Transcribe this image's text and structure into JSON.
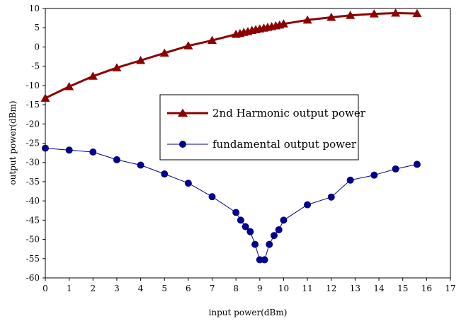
{
  "chart_data": {
    "type": "line",
    "title": "",
    "xlabel": "input power(dBm)",
    "ylabel": "output power(dBm)",
    "xlim": [
      0,
      17
    ],
    "ylim": [
      -60,
      10
    ],
    "xticks": [
      "0",
      "1",
      "2",
      "3",
      "4",
      "5",
      "6",
      "7",
      "8",
      "9",
      "10",
      "11",
      "12",
      "13",
      "14",
      "15",
      "16",
      "17"
    ],
    "yticks": [
      "10",
      "5",
      "0",
      "-5",
      "-10",
      "-15",
      "-20",
      "-25",
      "-30",
      "-35",
      "-40",
      "-45",
      "-50",
      "-55",
      "-60"
    ],
    "grid": false,
    "legend_position": "center",
    "series": [
      {
        "name": "2nd Harmonic output power",
        "color": "#8b0000",
        "marker": "triangle",
        "points": [
          [
            0,
            -13.3
          ],
          [
            1,
            -10.3
          ],
          [
            2,
            -7.6
          ],
          [
            3,
            -5.4
          ],
          [
            4,
            -3.5
          ],
          [
            5,
            -1.6
          ],
          [
            6,
            0.3
          ],
          [
            7,
            1.7
          ],
          [
            8,
            3.3
          ],
          [
            8.17,
            3.5
          ],
          [
            8.33,
            3.8
          ],
          [
            8.5,
            4.0
          ],
          [
            8.67,
            4.3
          ],
          [
            8.83,
            4.5
          ],
          [
            9.0,
            4.7
          ],
          [
            9.17,
            4.9
          ],
          [
            9.33,
            5.1
          ],
          [
            9.5,
            5.3
          ],
          [
            9.67,
            5.5
          ],
          [
            9.83,
            5.7
          ],
          [
            10,
            6.0
          ],
          [
            11,
            7.0
          ],
          [
            12,
            7.7
          ],
          [
            12.8,
            8.2
          ],
          [
            13.8,
            8.6
          ],
          [
            14.7,
            8.8
          ],
          [
            15.6,
            8.7
          ]
        ]
      },
      {
        "name": "fundamental output power",
        "color": "#00008b",
        "marker": "circle",
        "points": [
          [
            0,
            -26.3
          ],
          [
            1,
            -26.8
          ],
          [
            2,
            -27.3
          ],
          [
            3,
            -29.3
          ],
          [
            4,
            -30.7
          ],
          [
            5,
            -33.0
          ],
          [
            6,
            -35.4
          ],
          [
            7,
            -38.9
          ],
          [
            8,
            -43.0
          ],
          [
            8.2,
            -45.0
          ],
          [
            8.4,
            -46.7
          ],
          [
            8.6,
            -48.0
          ],
          [
            8.8,
            -51.3
          ],
          [
            9.0,
            -55.3
          ],
          [
            9.2,
            -55.3
          ],
          [
            9.4,
            -51.3
          ],
          [
            9.6,
            -49.0
          ],
          [
            9.8,
            -47.5
          ],
          [
            10,
            -45.0
          ],
          [
            11,
            -41.0
          ],
          [
            12,
            -39.0
          ],
          [
            12.8,
            -34.6
          ],
          [
            13.8,
            -33.3
          ],
          [
            14.7,
            -31.7
          ],
          [
            15.6,
            -30.5
          ]
        ]
      }
    ]
  }
}
